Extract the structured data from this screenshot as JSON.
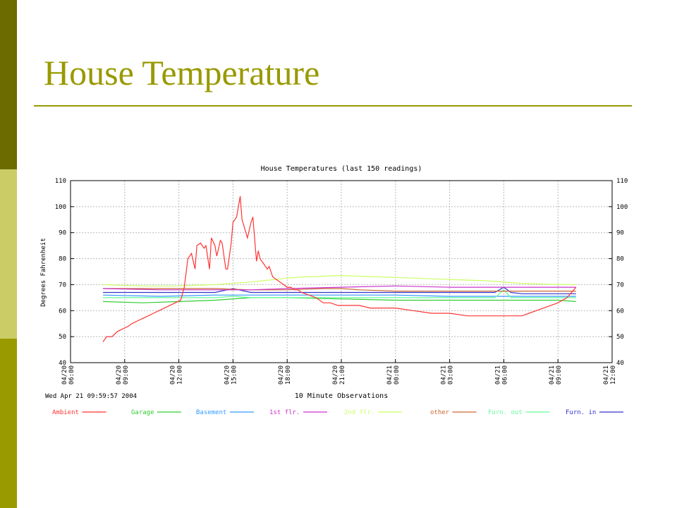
{
  "slide": {
    "title": "House Temperature"
  },
  "colors": {
    "accent": "#999900",
    "band_dark": "#6b6b00",
    "band_light": "#cccc66"
  },
  "chart_data": {
    "type": "line",
    "title": "House Temperatures (last 150 readings)",
    "xlabel": "10 Minute Observations",
    "ylabel": "Degrees Fahrenheit",
    "timestamp": "Wed Apr 21 09:59:57 2004",
    "ylim": [
      40,
      110
    ],
    "yticks": [
      40,
      50,
      60,
      70,
      80,
      90,
      100,
      110
    ],
    "xlim": [
      0,
      30
    ],
    "xticks": [
      {
        "x": 0,
        "date": "04/20",
        "time": "06:00"
      },
      {
        "x": 3,
        "date": "04/20",
        "time": "09:00"
      },
      {
        "x": 6,
        "date": "04/20",
        "time": "12:00"
      },
      {
        "x": 9,
        "date": "04/20",
        "time": "15:00"
      },
      {
        "x": 12,
        "date": "04/20",
        "time": "18:00"
      },
      {
        "x": 15,
        "date": "04/20",
        "time": "21:00"
      },
      {
        "x": 18,
        "date": "04/21",
        "time": "00:00"
      },
      {
        "x": 21,
        "date": "04/21",
        "time": "03:00"
      },
      {
        "x": 24,
        "date": "04/21",
        "time": "06:00"
      },
      {
        "x": 27,
        "date": "04/21",
        "time": "09:00"
      },
      {
        "x": 30,
        "date": "04/21",
        "time": "12:00"
      }
    ],
    "grid": true,
    "legend_position": "bottom",
    "series": [
      {
        "name": "Ambient",
        "color": "#ff3333",
        "x": [
          1.8,
          2.0,
          2.3,
          2.6,
          2.9,
          3.2,
          3.4,
          3.7,
          4.0,
          4.3,
          4.6,
          4.9,
          5.2,
          5.5,
          5.8,
          6.1,
          6.3,
          6.5,
          6.7,
          6.9,
          7.0,
          7.2,
          7.4,
          7.5,
          7.7,
          7.8,
          8.0,
          8.1,
          8.3,
          8.4,
          8.6,
          8.7,
          8.9,
          9.0,
          9.2,
          9.4,
          9.5,
          9.8,
          10.0,
          10.1,
          10.3,
          10.4,
          10.5,
          10.7,
          10.9,
          11.0,
          11.2,
          11.4,
          11.6,
          11.8,
          12.0,
          12.2,
          12.4,
          12.6,
          12.8,
          13.2,
          13.6,
          14.0,
          14.4,
          14.8,
          15.0,
          15.4,
          16.0,
          16.6,
          17.2,
          18.0,
          19.0,
          20.0,
          21.0,
          22.0,
          23.0,
          24.0,
          24.5,
          25.0,
          25.4,
          25.8,
          26.2,
          26.6,
          27.0,
          27.5,
          28.0
        ],
        "values": [
          48,
          50,
          50,
          52,
          53,
          54,
          55,
          56,
          57,
          58,
          59,
          60,
          61,
          62,
          63,
          64,
          69,
          80,
          82,
          76,
          85,
          86,
          84,
          85,
          76,
          88,
          85,
          81,
          87,
          86,
          76,
          76,
          86,
          94,
          96,
          104,
          95,
          88,
          94,
          96,
          79,
          83,
          80,
          78,
          76,
          77,
          73,
          72,
          71,
          70,
          69,
          69,
          68,
          68,
          67,
          66,
          65,
          63,
          63,
          62,
          62,
          62,
          62,
          61,
          61,
          61,
          60,
          59,
          59,
          58,
          58,
          58,
          58,
          58,
          59,
          60,
          61,
          62,
          63,
          65,
          69
        ]
      },
      {
        "name": "Garage",
        "color": "#33cc33",
        "x": [
          1.8,
          4,
          6,
          8,
          10,
          12,
          15,
          18,
          21,
          24,
          27,
          28
        ],
        "values": [
          63.5,
          63,
          63.5,
          64,
          65,
          65,
          64.5,
          64,
          64,
          64,
          64,
          63.5
        ]
      },
      {
        "name": "Basement",
        "color": "#3399ff",
        "x": [
          1.8,
          5,
          8,
          10,
          12,
          15,
          18,
          21,
          24,
          27,
          28
        ],
        "values": [
          66,
          65.5,
          66,
          66,
          66,
          66,
          66,
          65.5,
          65.5,
          65.5,
          65.5
        ]
      },
      {
        "name": "1st flr.",
        "color": "#cc33cc",
        "x": [
          1.8,
          5,
          8,
          10,
          12,
          15,
          18,
          21,
          24,
          27,
          28
        ],
        "values": [
          68.5,
          68,
          68,
          68,
          68.5,
          69,
          69.5,
          69,
          69,
          69,
          69
        ]
      },
      {
        "name": "2nd flr.",
        "color": "#ccff66",
        "x": [
          1.8,
          4,
          6,
          8,
          10,
          12,
          13,
          15,
          17,
          19,
          21,
          23,
          25,
          27,
          28
        ],
        "values": [
          70,
          69.5,
          69.5,
          70,
          71,
          72.5,
          73,
          73.5,
          73,
          72.5,
          72,
          71.5,
          70.5,
          70,
          70
        ]
      },
      {
        "name": "other",
        "color": "#cc6633",
        "x": [
          1.8,
          4,
          6,
          8,
          10,
          12,
          14,
          15,
          16,
          18,
          21,
          24,
          25,
          26,
          28
        ],
        "values": [
          68.5,
          68.5,
          68.5,
          68.5,
          68,
          68,
          68.5,
          68.5,
          68,
          67.5,
          67.5,
          67.5,
          67.5,
          67.5,
          67.5
        ]
      },
      {
        "name": "Furn. out",
        "color": "#66ff99",
        "x": [
          1.8,
          5,
          8,
          9,
          10,
          12,
          15,
          18,
          21,
          23.5,
          24,
          24.4,
          25,
          28
        ],
        "values": [
          65,
          65,
          65,
          65.5,
          65,
          65,
          65,
          65,
          65,
          65,
          68,
          65,
          65,
          65
        ]
      },
      {
        "name": "Furn. in",
        "color": "#3333cc",
        "x": [
          1.8,
          5,
          8,
          9,
          10,
          12,
          15,
          18,
          21,
          23.5,
          24,
          24.4,
          25,
          28
        ],
        "values": [
          67,
          67,
          67,
          68.5,
          67,
          67,
          67,
          67,
          67,
          67,
          69,
          67,
          66.5,
          66.5
        ]
      }
    ]
  }
}
